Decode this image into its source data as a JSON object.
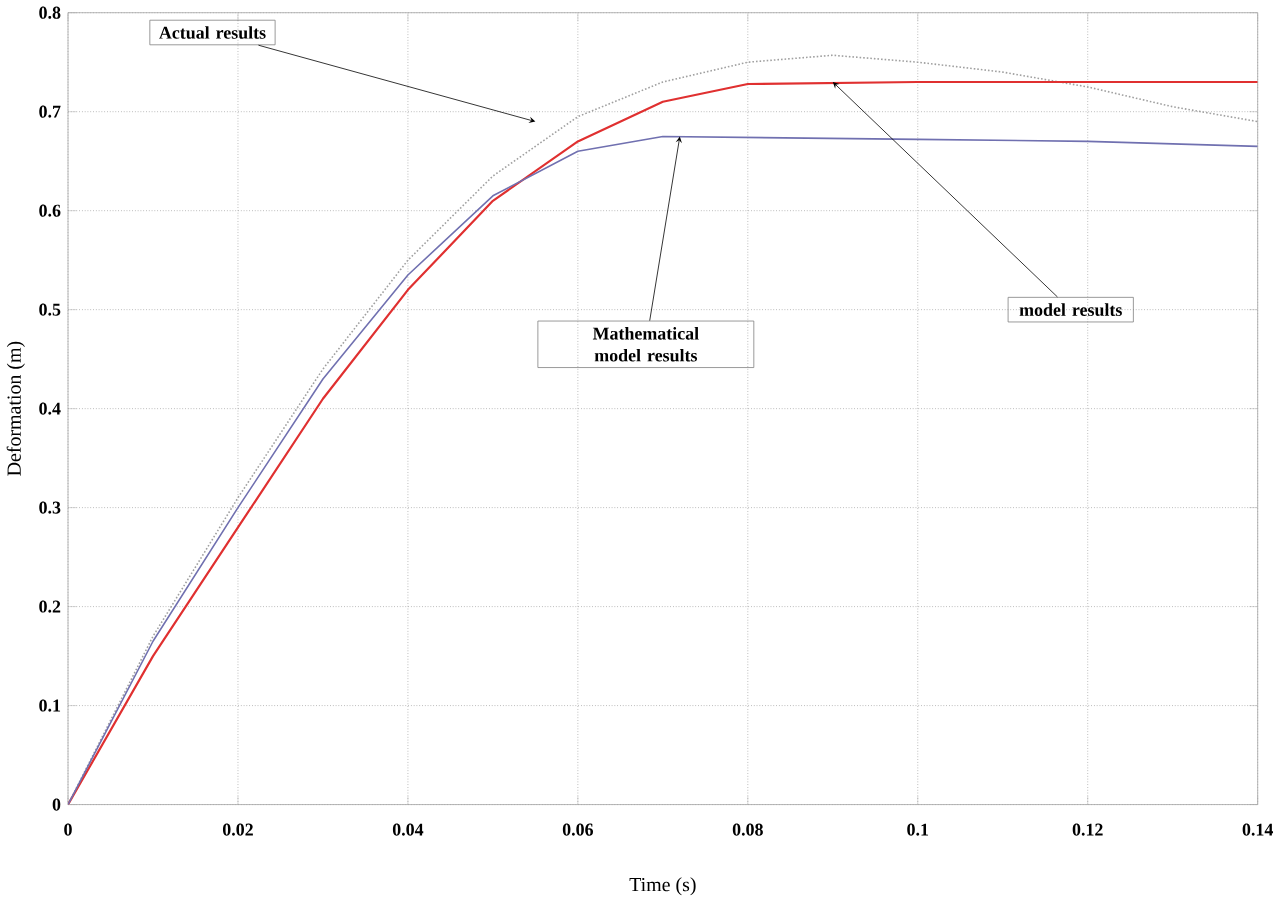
{
  "chart_data": {
    "type": "line",
    "xlabel": "Time (s)",
    "ylabel": "Deformation (m)",
    "xlim": [
      0,
      0.14
    ],
    "ylim": [
      0,
      0.8
    ],
    "xticks": [
      0,
      0.02,
      0.04,
      0.06,
      0.08,
      0.1,
      0.12,
      0.14
    ],
    "yticks": [
      0,
      0.1,
      0.2,
      0.3,
      0.4,
      0.5,
      0.6,
      0.7,
      0.8
    ],
    "grid": true,
    "marker": "none",
    "series": [
      {
        "color": "#a0a0a0",
        "line_style": "dotted",
        "x": [
          0,
          0.01,
          0.02,
          0.03,
          0.04,
          0.05,
          0.06,
          0.07,
          0.08,
          0.09,
          0.1,
          0.11,
          0.12,
          0.13,
          0.14
        ],
        "values": [
          0,
          0.17,
          0.31,
          0.44,
          0.55,
          0.635,
          0.695,
          0.73,
          0.75,
          0.757,
          0.75,
          0.74,
          0.725,
          0.705,
          0.69
        ]
      },
      {
        "color": "#e03030",
        "line_style": "solid",
        "x": [
          0,
          0.01,
          0.02,
          0.03,
          0.04,
          0.05,
          0.06,
          0.07,
          0.08,
          0.1,
          0.14
        ],
        "values": [
          0,
          0.15,
          0.28,
          0.41,
          0.52,
          0.61,
          0.67,
          0.71,
          0.728,
          0.73,
          0.73
        ]
      },
      {
        "color": "#7070b0",
        "line_style": "solid",
        "x": [
          0,
          0.01,
          0.02,
          0.03,
          0.04,
          0.05,
          0.06,
          0.07,
          0.1,
          0.12,
          0.14
        ],
        "values": [
          0,
          0.165,
          0.3,
          0.43,
          0.535,
          0.615,
          0.66,
          0.675,
          0.672,
          0.67,
          0.665
        ]
      }
    ],
    "annotations": [
      {
        "text": "Actual results",
        "x": 0.055,
        "y": 0.69
      },
      {
        "text": "Mathematical model results",
        "x": 0.072,
        "y": 0.675
      },
      {
        "text": "model results",
        "x": 0.09,
        "y": 0.73
      }
    ]
  }
}
